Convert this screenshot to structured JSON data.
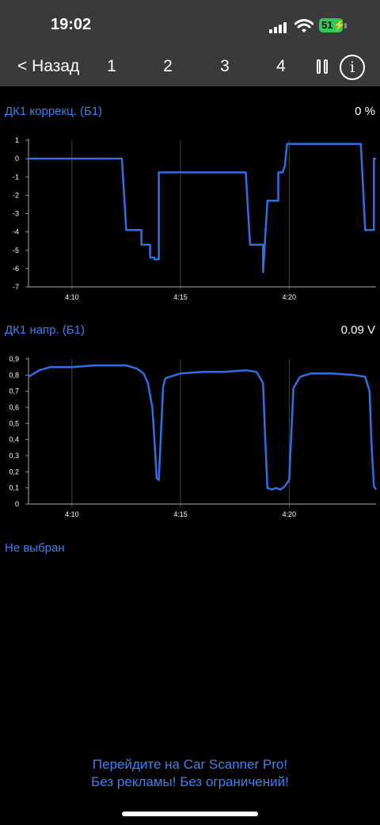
{
  "status_bar": {
    "time": "19:02",
    "battery": "51"
  },
  "navbar": {
    "back_label": "< Назад",
    "tabs": [
      "1",
      "2",
      "3",
      "4"
    ],
    "pause_icon": "pause-icon",
    "info_icon": "info-icon"
  },
  "sensors": [
    {
      "label": "ДК1 коррекц. (Б1)",
      "value": "0  %"
    },
    {
      "label": "ДК1 напр. (Б1)",
      "value": "0.09  V"
    }
  ],
  "empty_slot": "Не выбран",
  "promo": {
    "line1": "Перейдите на Car Scanner Pro!",
    "line2": "Без рекламы! Без ограничений!"
  },
  "colors": {
    "accent": "#3b82f6",
    "line": "#2f6fe4",
    "grid": "#555555"
  },
  "chart_data": [
    {
      "type": "line",
      "title": "ДК1 коррекц. (Б1)",
      "ylim": [
        -7,
        1
      ],
      "yticks": [
        "1",
        "0",
        "-1",
        "-2",
        "-3",
        "-4",
        "-5",
        "-6",
        "-7"
      ],
      "xlim": [
        8.0,
        24.0
      ],
      "xticks": [
        {
          "v": 10,
          "label": "4:10"
        },
        {
          "v": 15,
          "label": "4:15"
        },
        {
          "v": 20,
          "label": "4:20"
        }
      ],
      "grid": true,
      "x": [
        8.0,
        10.0,
        12.3,
        12.5,
        12.5,
        13.2,
        13.2,
        13.6,
        13.6,
        13.8,
        13.8,
        14.0,
        14.0,
        16.0,
        18.0,
        18.2,
        18.2,
        18.8,
        18.8,
        19.0,
        19.0,
        19.5,
        19.5,
        19.7,
        19.8,
        19.9,
        20.0,
        21.0,
        22.0,
        23.3,
        23.5,
        23.5,
        23.9,
        23.9,
        24.0
      ],
      "y": [
        0,
        0,
        0,
        -3.9,
        -3.9,
        -3.9,
        -4.7,
        -4.7,
        -5.4,
        -5.4,
        -5.5,
        -5.5,
        -0.75,
        -0.75,
        -0.75,
        -4.7,
        -4.7,
        -4.7,
        -6.2,
        -2.3,
        -2.3,
        -2.3,
        -0.75,
        -0.75,
        -0.4,
        0.8,
        0.8,
        0.8,
        0.8,
        0.8,
        -3.9,
        -3.9,
        -3.9,
        0,
        0
      ]
    },
    {
      "type": "line",
      "title": "ДК1 напр. (Б1)",
      "ylim": [
        0,
        0.9
      ],
      "yticks": [
        "0,9",
        "0,8",
        "0,7",
        "0,6",
        "0,5",
        "0,4",
        "0,3",
        "0,2",
        "0,1",
        "0"
      ],
      "xlim": [
        8.0,
        24.0
      ],
      "xticks": [
        {
          "v": 10,
          "label": "4:10"
        },
        {
          "v": 15,
          "label": "4:15"
        },
        {
          "v": 20,
          "label": "4:20"
        }
      ],
      "grid": true,
      "x": [
        8.0,
        8.5,
        9.0,
        10.0,
        11.0,
        12.0,
        12.5,
        13.0,
        13.3,
        13.5,
        13.7,
        13.8,
        13.9,
        14.0,
        14.1,
        14.2,
        14.3,
        14.5,
        15.0,
        16.0,
        17.0,
        18.0,
        18.5,
        18.8,
        18.9,
        19.0,
        19.2,
        19.4,
        19.6,
        19.7,
        19.8,
        20.0,
        20.2,
        20.5,
        21.0,
        22.0,
        23.0,
        23.5,
        23.7,
        23.8,
        23.9,
        24.0
      ],
      "y": [
        0.79,
        0.83,
        0.85,
        0.85,
        0.86,
        0.86,
        0.86,
        0.84,
        0.81,
        0.75,
        0.6,
        0.4,
        0.16,
        0.15,
        0.45,
        0.73,
        0.78,
        0.79,
        0.81,
        0.82,
        0.82,
        0.83,
        0.82,
        0.75,
        0.4,
        0.1,
        0.09,
        0.1,
        0.09,
        0.1,
        0.11,
        0.15,
        0.72,
        0.79,
        0.81,
        0.81,
        0.8,
        0.79,
        0.7,
        0.35,
        0.11,
        0.09
      ]
    }
  ]
}
